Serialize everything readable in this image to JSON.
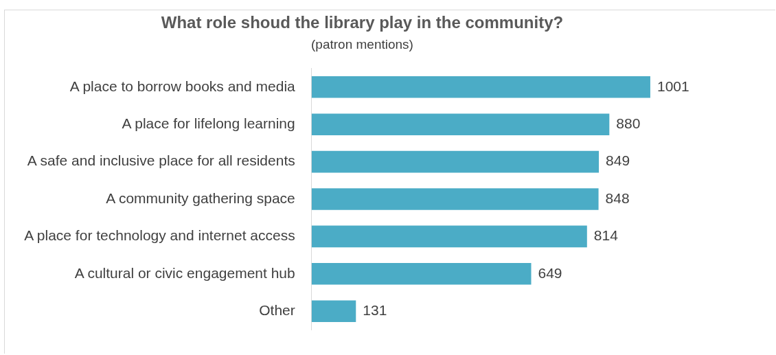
{
  "chart_data": {
    "type": "bar",
    "orientation": "horizontal",
    "title": "What role shoud the library play in the community?",
    "subtitle": "(patron mentions)",
    "categories": [
      "A place to borrow books and media",
      "A place for lifelong learning",
      "A safe and inclusive place for all residents",
      "A community gathering space",
      "A place for technology and internet access",
      "A cultural or civic engagement hub",
      "Other"
    ],
    "values": [
      1001,
      880,
      849,
      848,
      814,
      649,
      131
    ],
    "color": "#4bacc6",
    "data_labels": true,
    "legend": false
  }
}
